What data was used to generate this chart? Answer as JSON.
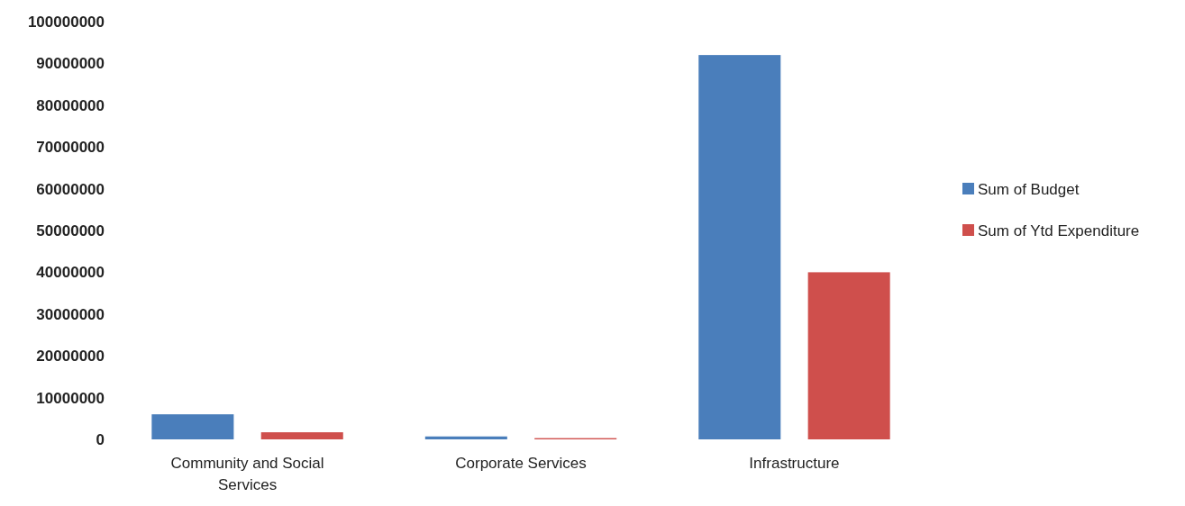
{
  "chart_data": {
    "type": "bar",
    "categories": [
      "Community and Social Services",
      "Corporate Services",
      "Infrastructure"
    ],
    "series": [
      {
        "name": "Sum of Budget",
        "color": "#4a7ebb",
        "values": [
          6000000,
          700000,
          92000000
        ]
      },
      {
        "name": "Sum of Ytd Expenditure",
        "color": "#cf4f4c",
        "values": [
          1700000,
          300000,
          40000000
        ]
      }
    ],
    "ylim": [
      0,
      100000000
    ],
    "yticks": [
      0,
      10000000,
      20000000,
      30000000,
      40000000,
      50000000,
      60000000,
      70000000,
      80000000,
      90000000,
      100000000
    ],
    "grid": false,
    "legend": "right"
  }
}
